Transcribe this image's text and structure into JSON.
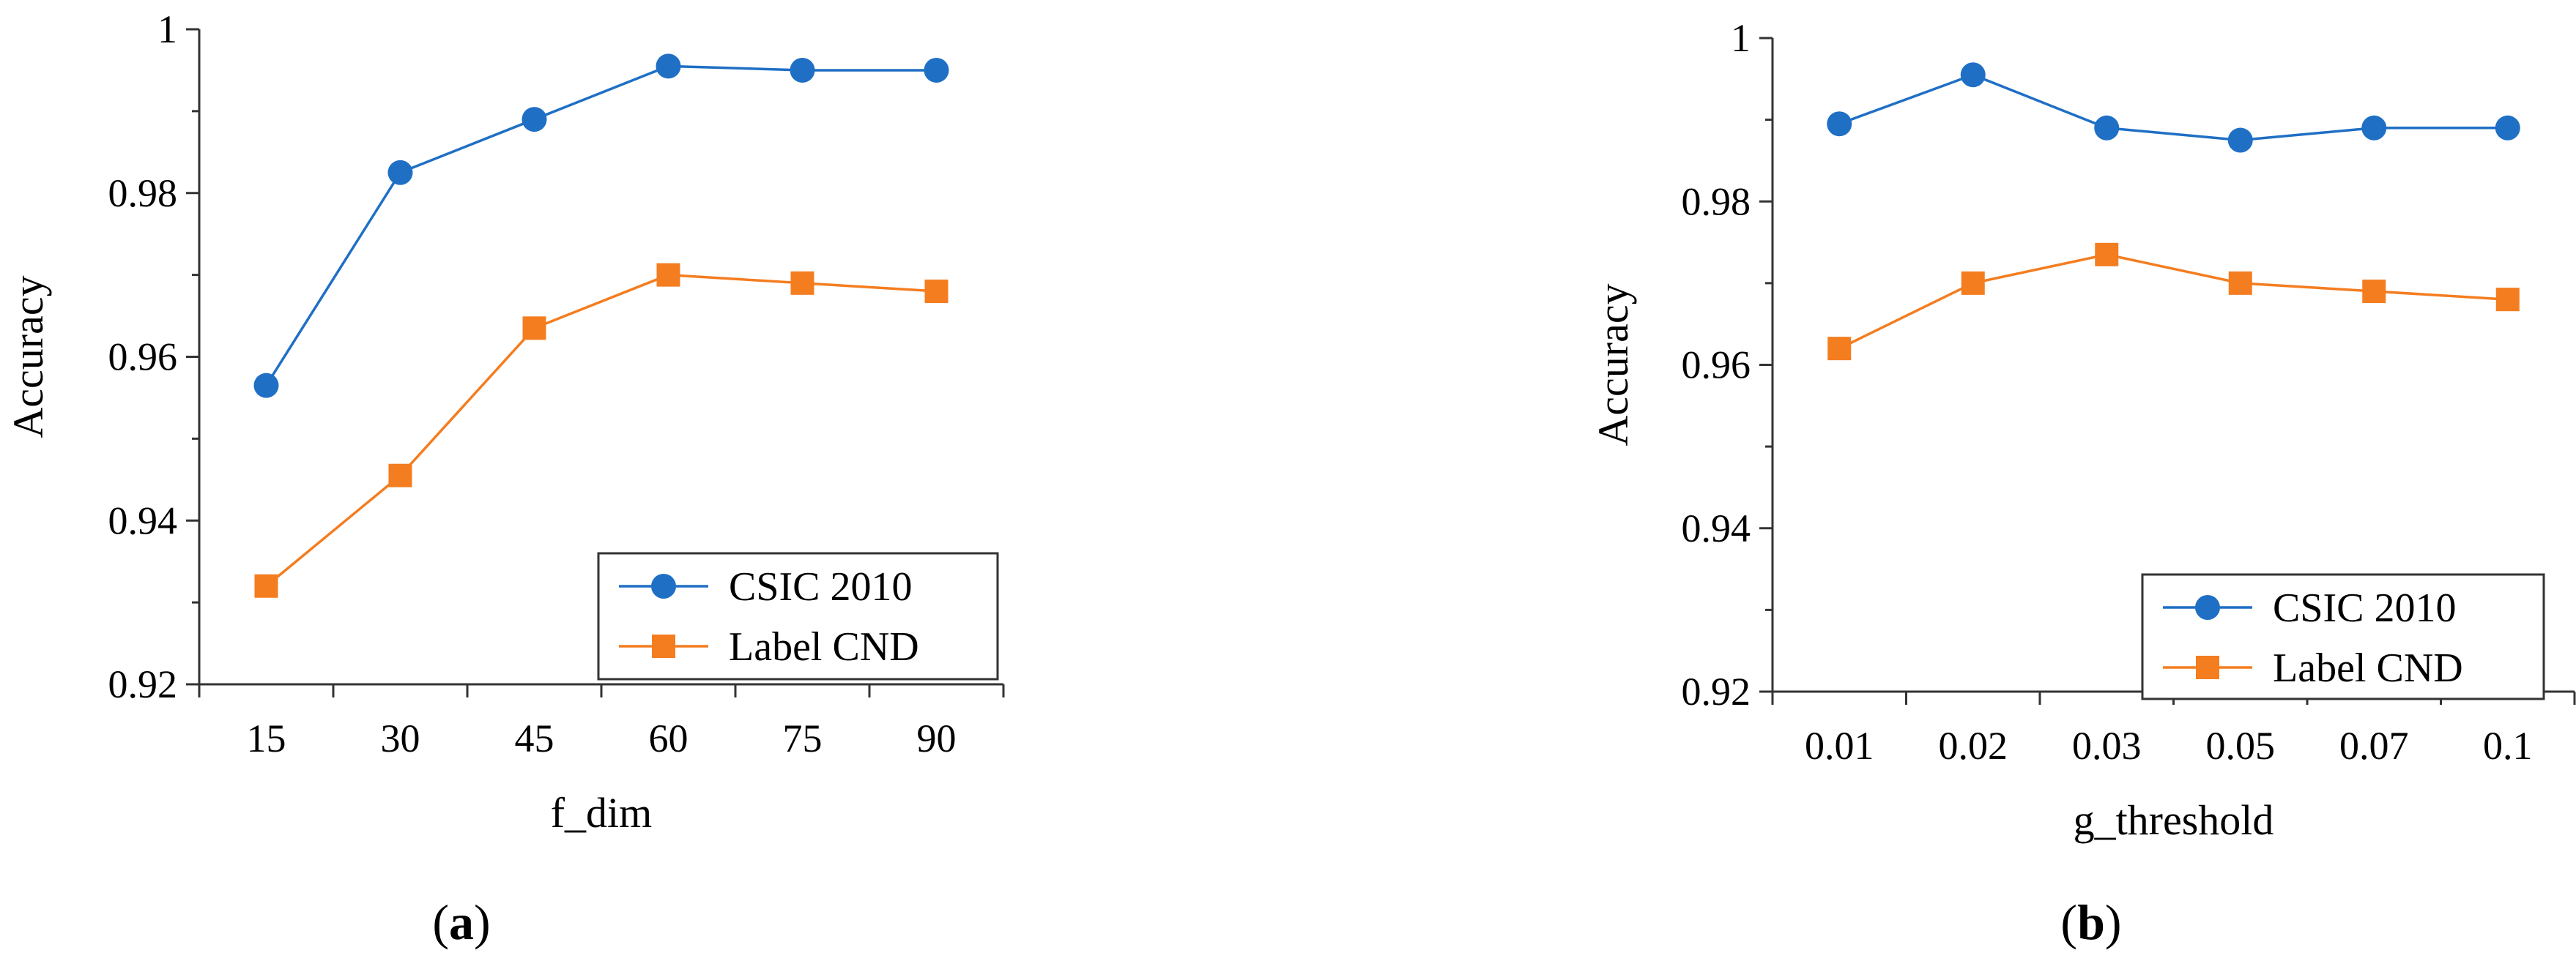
{
  "colors": {
    "series1": "#1f6fc5",
    "series2": "#f47d20",
    "axis": "#333333"
  },
  "chart_data": [
    {
      "type": "line",
      "panel_label": "a",
      "xlabel": "f_dim",
      "ylabel": "Accuracy",
      "categories": [
        "15",
        "30",
        "45",
        "60",
        "75",
        "90"
      ],
      "ylim": [
        0.92,
        1.0
      ],
      "yticks": [
        "0.92",
        "0.94",
        "0.96",
        "0.98",
        "1"
      ],
      "grid": false,
      "legend_position": "bottom-right",
      "series": [
        {
          "name": "CSIC 2010",
          "marker": "circle",
          "values": [
            0.9565,
            0.9825,
            0.989,
            0.9955,
            0.995,
            0.995
          ]
        },
        {
          "name": "Label CND",
          "marker": "square",
          "values": [
            0.932,
            0.9455,
            0.9635,
            0.97,
            0.969,
            0.968
          ]
        }
      ]
    },
    {
      "type": "line",
      "panel_label": "b",
      "xlabel": "g_threshold",
      "ylabel": "Accuracy",
      "categories": [
        "0.01",
        "0.02",
        "0.03",
        "0.05",
        "0.07",
        "0.1"
      ],
      "ylim": [
        0.92,
        1.0
      ],
      "yticks": [
        "0.92",
        "0.94",
        "0.96",
        "0.98",
        "1"
      ],
      "grid": false,
      "legend_position": "bottom-right",
      "series": [
        {
          "name": "CSIC 2010",
          "marker": "circle",
          "values": [
            0.9895,
            0.9955,
            0.989,
            0.9875,
            0.989,
            0.989
          ]
        },
        {
          "name": "Label CND",
          "marker": "square",
          "values": [
            0.962,
            0.97,
            0.9735,
            0.97,
            0.969,
            0.968
          ]
        }
      ]
    }
  ]
}
